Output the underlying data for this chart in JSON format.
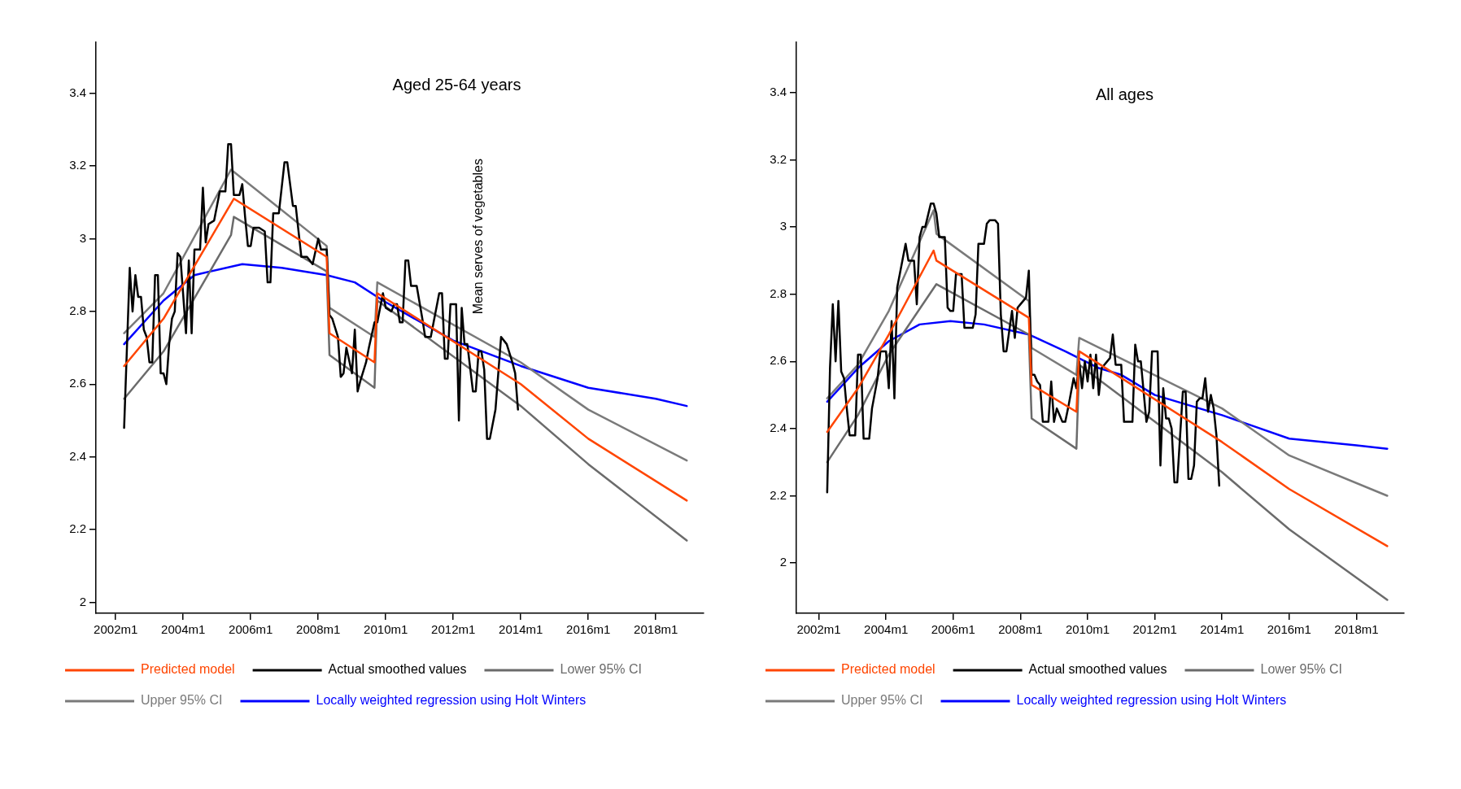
{
  "chart_data": [
    {
      "type": "line",
      "title": "Aged 25-64 years",
      "annotations": [
        "Mean serves of vegetables"
      ],
      "legend": "bottom",
      "xlim": [
        "2001-06",
        "2019-06"
      ],
      "ylim": [
        1.97,
        3.54
      ],
      "xticks": [
        {
          "value": "2002-01",
          "label": "2002m1"
        },
        {
          "value": "2004-01",
          "label": "2004m1"
        },
        {
          "value": "2006-01",
          "label": "2006m1"
        },
        {
          "value": "2008-01",
          "label": "2008m1"
        },
        {
          "value": "2010-01",
          "label": "2010m1"
        },
        {
          "value": "2012-01",
          "label": "2012m1"
        },
        {
          "value": "2014-01",
          "label": "2014m1"
        },
        {
          "value": "2016-01",
          "label": "2016m1"
        },
        {
          "value": "2018-01",
          "label": "2018m1"
        }
      ],
      "yticks": [
        2,
        2.2,
        2.4,
        2.6,
        2.8,
        3,
        3.2,
        3.4
      ],
      "series": [
        {
          "name": "Predicted model",
          "color": "#ff4500",
          "x": [
            "2002-04",
            "2003-06",
            "2005-07",
            "2008-04",
            "2008-05",
            "2009-09",
            "2009-10",
            "2014-01",
            "2016-01",
            "2018-12"
          ],
          "values": [
            2.65,
            2.78,
            3.11,
            2.95,
            2.74,
            2.66,
            2.85,
            2.6,
            2.45,
            2.28
          ]
        },
        {
          "name": "Actual smoothed values",
          "color": "#000000",
          "x": [
            "2002-04",
            "2002-06",
            "2002-07",
            "2002-08",
            "2002-09",
            "2002-10",
            "2002-11",
            "2002-12",
            "2003-01",
            "2003-02",
            "2003-03",
            "2003-04",
            "2003-05",
            "2003-06",
            "2003-07",
            "2003-08",
            "2003-09",
            "2003-10",
            "2003-11",
            "2003-12",
            "2004-02",
            "2004-03",
            "2004-04",
            "2004-05",
            "2004-07",
            "2004-08",
            "2004-09",
            "2004-10",
            "2004-12",
            "2005-01",
            "2005-02",
            "2005-04",
            "2005-05",
            "2005-06",
            "2005-07",
            "2005-09",
            "2005-10",
            "2005-11",
            "2005-12",
            "2006-01",
            "2006-02",
            "2006-04",
            "2006-06",
            "2006-07",
            "2006-08",
            "2006-09",
            "2006-11",
            "2007-01",
            "2007-02",
            "2007-04",
            "2007-05",
            "2007-07",
            "2007-09",
            "2007-11",
            "2008-01",
            "2008-02",
            "2008-04",
            "2008-05",
            "2008-06",
            "2008-08",
            "2008-09",
            "2008-10",
            "2008-11",
            "2009-01",
            "2009-02",
            "2009-03",
            "2009-04",
            "2009-06",
            "2009-07",
            "2009-09",
            "2009-10",
            "2009-12",
            "2010-01",
            "2010-03",
            "2010-04",
            "2010-05",
            "2010-06",
            "2010-07",
            "2010-08",
            "2010-09",
            "2010-10",
            "2010-12",
            "2011-02",
            "2011-03",
            "2011-05",
            "2011-08",
            "2011-09",
            "2011-10",
            "2011-11",
            "2011-12",
            "2012-02",
            "2012-03",
            "2012-04",
            "2012-05",
            "2012-06",
            "2012-08",
            "2012-09",
            "2012-10",
            "2012-11",
            "2012-12",
            "2013-01",
            "2013-02",
            "2013-04",
            "2013-06",
            "2013-08",
            "2013-10",
            "2013-11",
            "2013-12"
          ],
          "values": [
            2.48,
            2.92,
            2.8,
            2.9,
            2.84,
            2.84,
            2.75,
            2.73,
            2.66,
            2.66,
            2.9,
            2.9,
            2.63,
            2.63,
            2.6,
            2.71,
            2.78,
            2.8,
            2.96,
            2.95,
            2.74,
            2.94,
            2.74,
            2.97,
            2.97,
            3.14,
            2.99,
            3.04,
            3.05,
            3.09,
            3.13,
            3.13,
            3.26,
            3.26,
            3.12,
            3.12,
            3.15,
            3.06,
            2.98,
            2.98,
            3.03,
            3.03,
            3.02,
            2.88,
            2.88,
            3.07,
            3.07,
            3.21,
            3.21,
            3.09,
            3.09,
            2.95,
            2.95,
            2.93,
            3.0,
            2.97,
            2.97,
            2.79,
            2.78,
            2.73,
            2.62,
            2.63,
            2.7,
            2.63,
            2.75,
            2.58,
            2.61,
            2.66,
            2.7,
            2.77,
            2.77,
            2.85,
            2.81,
            2.8,
            2.82,
            2.82,
            2.77,
            2.77,
            2.94,
            2.94,
            2.87,
            2.87,
            2.78,
            2.73,
            2.73,
            2.85,
            2.85,
            2.67,
            2.67,
            2.82,
            2.82,
            2.5,
            2.81,
            2.71,
            2.71,
            2.58,
            2.58,
            2.69,
            2.69,
            2.64,
            2.45,
            2.45,
            2.53,
            2.73,
            2.71,
            2.66,
            2.63,
            2.53
          ]
        },
        {
          "name": "Lower 95% CI",
          "color": "#6b6b6b",
          "x": [
            "2002-04",
            "2003-06",
            "2005-06",
            "2005-07",
            "2008-04",
            "2008-05",
            "2009-09",
            "2009-10",
            "2014-01",
            "2016-01",
            "2018-12"
          ],
          "values": [
            2.56,
            2.69,
            3.01,
            3.06,
            2.91,
            2.68,
            2.59,
            2.83,
            2.54,
            2.38,
            2.17
          ]
        },
        {
          "name": "Upper 95% CI",
          "color": "#7a7a7a",
          "x": [
            "2002-04",
            "2003-06",
            "2005-06",
            "2008-04",
            "2008-05",
            "2009-09",
            "2009-10",
            "2014-01",
            "2016-01",
            "2018-12"
          ],
          "values": [
            2.74,
            2.85,
            3.19,
            2.98,
            2.81,
            2.73,
            2.88,
            2.66,
            2.53,
            2.39
          ]
        },
        {
          "name": "Locally weighted regression using Holt Winters",
          "color": "#0000ff",
          "x": [
            "2002-04",
            "2003-06",
            "2004-05",
            "2005-10",
            "2006-12",
            "2008-04",
            "2009-02",
            "2009-12",
            "2010-09",
            "2012-01",
            "2014-01",
            "2016-01",
            "2018-01",
            "2018-12"
          ],
          "values": [
            2.71,
            2.83,
            2.9,
            2.93,
            2.92,
            2.9,
            2.88,
            2.83,
            2.79,
            2.72,
            2.65,
            2.59,
            2.56,
            2.54
          ]
        }
      ]
    },
    {
      "type": "line",
      "title": "All ages",
      "legend": "bottom",
      "xlim": [
        "2001-05",
        "2019-06"
      ],
      "ylim": [
        1.85,
        3.55
      ],
      "xticks": [
        {
          "value": "2002-01",
          "label": "2002m1"
        },
        {
          "value": "2004-01",
          "label": "2004m1"
        },
        {
          "value": "2006-01",
          "label": "2006m1"
        },
        {
          "value": "2008-01",
          "label": "2008m1"
        },
        {
          "value": "2010-01",
          "label": "2010m1"
        },
        {
          "value": "2012-01",
          "label": "2012m1"
        },
        {
          "value": "2014-01",
          "label": "2014m1"
        },
        {
          "value": "2016-01",
          "label": "2016m1"
        },
        {
          "value": "2018-01",
          "label": "2018m1"
        }
      ],
      "yticks": [
        2,
        2.2,
        2.4,
        2.6,
        2.8,
        3,
        3.2,
        3.4
      ],
      "series": [
        {
          "name": "Predicted model",
          "color": "#ff4500",
          "x": [
            "2002-04",
            "2003-03",
            "2004-02",
            "2005-06",
            "2005-07",
            "2008-04",
            "2008-05",
            "2009-09",
            "2009-10",
            "2014-01",
            "2016-01",
            "2018-12"
          ],
          "values": [
            2.39,
            2.52,
            2.68,
            2.93,
            2.9,
            2.73,
            2.53,
            2.45,
            2.63,
            2.36,
            2.22,
            2.05
          ]
        },
        {
          "name": "Actual smoothed values",
          "color": "#000000",
          "x": [
            "2002-04",
            "2002-05",
            "2002-06",
            "2002-07",
            "2002-08",
            "2002-09",
            "2002-10",
            "2002-11",
            "2002-12",
            "2003-02",
            "2003-03",
            "2003-04",
            "2003-05",
            "2003-07",
            "2003-08",
            "2003-10",
            "2003-11",
            "2004-01",
            "2004-02",
            "2004-03",
            "2004-04",
            "2004-05",
            "2004-08",
            "2004-09",
            "2004-11",
            "2004-12",
            "2005-01",
            "2005-02",
            "2005-03",
            "2005-05",
            "2005-06",
            "2005-07",
            "2005-08",
            "2005-10",
            "2005-11",
            "2005-12",
            "2006-01",
            "2006-02",
            "2006-04",
            "2006-05",
            "2006-08",
            "2006-09",
            "2006-10",
            "2006-12",
            "2007-01",
            "2007-02",
            "2007-04",
            "2007-05",
            "2007-06",
            "2007-07",
            "2007-08",
            "2007-09",
            "2007-10",
            "2007-11",
            "2007-12",
            "2008-01",
            "2008-03",
            "2008-04",
            "2008-05",
            "2008-06",
            "2008-07",
            "2008-08",
            "2008-09",
            "2008-11",
            "2008-12",
            "2009-01",
            "2009-02",
            "2009-04",
            "2009-05",
            "2009-06",
            "2009-08",
            "2009-09",
            "2009-10",
            "2009-11",
            "2009-12",
            "2010-01",
            "2010-02",
            "2010-03",
            "2010-04",
            "2010-05",
            "2010-06",
            "2010-09",
            "2010-10",
            "2010-11",
            "2011-01",
            "2011-02",
            "2011-05",
            "2011-06",
            "2011-07",
            "2011-08",
            "2011-10",
            "2011-11",
            "2011-12",
            "2012-02",
            "2012-03",
            "2012-04",
            "2012-05",
            "2012-06",
            "2012-07",
            "2012-08",
            "2012-09",
            "2012-11",
            "2012-12",
            "2013-01",
            "2013-02",
            "2013-03",
            "2013-04",
            "2013-05",
            "2013-06",
            "2013-07",
            "2013-08",
            "2013-09",
            "2013-10",
            "2013-11",
            "2013-12"
          ],
          "values": [
            2.21,
            2.58,
            2.77,
            2.6,
            2.78,
            2.57,
            2.55,
            2.46,
            2.38,
            2.38,
            2.62,
            2.62,
            2.37,
            2.37,
            2.46,
            2.55,
            2.63,
            2.63,
            2.52,
            2.72,
            2.49,
            2.82,
            2.95,
            2.9,
            2.9,
            2.77,
            2.97,
            3.0,
            3.0,
            3.07,
            3.07,
            3.04,
            2.97,
            2.97,
            2.76,
            2.75,
            2.75,
            2.86,
            2.86,
            2.7,
            2.7,
            2.74,
            2.95,
            2.95,
            3.01,
            3.02,
            3.02,
            3.01,
            2.74,
            2.63,
            2.63,
            2.69,
            2.75,
            2.67,
            2.76,
            2.77,
            2.79,
            2.87,
            2.56,
            2.56,
            2.54,
            2.53,
            2.42,
            2.42,
            2.54,
            2.42,
            2.46,
            2.42,
            2.42,
            2.46,
            2.55,
            2.52,
            2.6,
            2.52,
            2.6,
            2.54,
            2.62,
            2.52,
            2.62,
            2.5,
            2.58,
            2.61,
            2.68,
            2.59,
            2.59,
            2.42,
            2.42,
            2.65,
            2.6,
            2.6,
            2.42,
            2.45,
            2.63,
            2.63,
            2.29,
            2.52,
            2.43,
            2.43,
            2.4,
            2.24,
            2.24,
            2.51,
            2.51,
            2.25,
            2.25,
            2.29,
            2.48,
            2.49,
            2.49,
            2.55,
            2.45,
            2.5,
            2.46,
            2.38,
            2.23
          ]
        },
        {
          "name": "Lower 95% CI",
          "color": "#6b6b6b",
          "x": [
            "2002-04",
            "2003-03",
            "2004-02",
            "2005-07",
            "2008-04",
            "2008-05",
            "2009-09",
            "2009-10",
            "2014-01",
            "2016-01",
            "2018-12"
          ],
          "values": [
            2.3,
            2.44,
            2.62,
            2.83,
            2.68,
            2.43,
            2.34,
            2.59,
            2.27,
            2.1,
            1.89
          ]
        },
        {
          "name": "Upper 95% CI",
          "color": "#7a7a7a",
          "x": [
            "2002-04",
            "2003-03",
            "2004-02",
            "2005-06",
            "2005-07",
            "2008-04",
            "2008-05",
            "2009-09",
            "2009-10",
            "2014-01",
            "2016-01",
            "2018-12"
          ],
          "values": [
            2.49,
            2.59,
            2.75,
            3.05,
            2.98,
            2.78,
            2.64,
            2.56,
            2.67,
            2.46,
            2.32,
            2.2
          ]
        },
        {
          "name": "Locally weighted regression using Holt Winters",
          "color": "#0000ff",
          "x": [
            "2002-04",
            "2003-03",
            "2004-02",
            "2005-01",
            "2005-12",
            "2006-12",
            "2008-04",
            "2009-05",
            "2010-05",
            "2011-01",
            "2012-01",
            "2014-01",
            "2016-01",
            "2018-01",
            "2018-12"
          ],
          "values": [
            2.48,
            2.58,
            2.66,
            2.71,
            2.72,
            2.71,
            2.68,
            2.63,
            2.58,
            2.56,
            2.5,
            2.44,
            2.37,
            2.35,
            2.34
          ]
        }
      ]
    }
  ]
}
